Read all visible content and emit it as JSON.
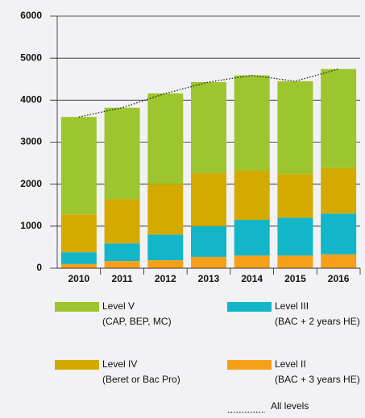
{
  "chart_data": {
    "type": "bar",
    "stacked": true,
    "categories": [
      "2010",
      "2011",
      "2012",
      "2013",
      "2014",
      "2015",
      "2016"
    ],
    "ylim": [
      0,
      6000
    ],
    "yticks": [
      0,
      1000,
      2000,
      3000,
      4000,
      5000,
      6000
    ],
    "grid": true,
    "series": [
      {
        "name": "Level II",
        "description": "(BAC + 3 years HE)",
        "color": "#f6a01a",
        "values": [
          100,
          170,
          190,
          270,
          300,
          300,
          330
        ]
      },
      {
        "name": "Level III",
        "description": "(BAC + 2 years HE)",
        "color": "#13b5c9",
        "values": [
          280,
          420,
          610,
          730,
          850,
          900,
          970
        ]
      },
      {
        "name": "Level IV",
        "description": "(Beret or Bac Pro)",
        "color": "#d4aa00",
        "values": [
          900,
          1050,
          1200,
          1260,
          1170,
          1040,
          1080
        ]
      },
      {
        "name": "Level V",
        "description": "(CAP, BEP, MC)",
        "color": "#9dc52e",
        "values": [
          2320,
          2180,
          2160,
          2170,
          2270,
          2210,
          2360
        ]
      },
      {
        "name": "All levels",
        "type": "line",
        "color": "#222222",
        "values": [
          3600,
          3820,
          4160,
          4430,
          4590,
          4450,
          4740
        ]
      }
    ]
  }
}
